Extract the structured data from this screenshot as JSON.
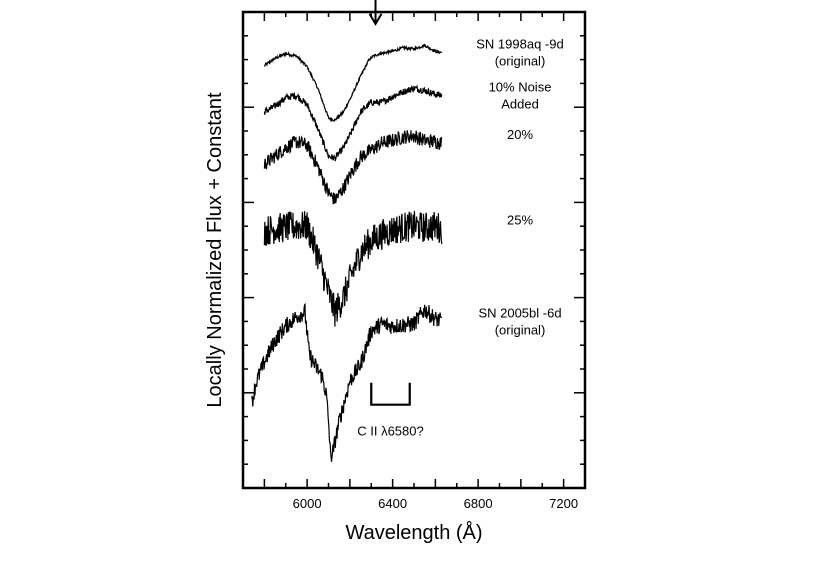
{
  "chart_data": {
    "type": "line",
    "title": "",
    "xlabel": "Wavelength (Å)",
    "ylabel": "Locally Normalized Flux + Constant",
    "xlim": [
      5700,
      7300
    ],
    "ylim": [
      0,
      20
    ],
    "x_ticks": [
      6000,
      6400,
      6800,
      7200
    ],
    "x_tick_labels": [
      "6000",
      "6400",
      "6800",
      "7200"
    ],
    "grid": false,
    "series": [
      {
        "name": "SN 1998aq -9d",
        "label_lines": [
          "SN 1998aq -9d",
          "(original)"
        ],
        "x_range": [
          5800,
          6630
        ],
        "noise": 0.06,
        "points": [
          [
            5800,
            17.75
          ],
          [
            5850,
            18.05
          ],
          [
            5900,
            18.25
          ],
          [
            5950,
            18.15
          ],
          [
            6000,
            17.7
          ],
          [
            6050,
            16.8
          ],
          [
            6100,
            15.55
          ],
          [
            6130,
            15.45
          ],
          [
            6170,
            15.8
          ],
          [
            6210,
            16.5
          ],
          [
            6250,
            17.3
          ],
          [
            6290,
            18.0
          ],
          [
            6310,
            18.15
          ],
          [
            6340,
            18.25
          ],
          [
            6400,
            18.35
          ],
          [
            6450,
            18.5
          ],
          [
            6500,
            18.45
          ],
          [
            6550,
            18.6
          ],
          [
            6600,
            18.35
          ],
          [
            6630,
            18.3
          ]
        ]
      },
      {
        "name": "10% Noise Added",
        "label_lines": [
          "10% Noise",
          "Added"
        ],
        "x_range": [
          5800,
          6630
        ],
        "noise": 0.14,
        "points": [
          [
            5800,
            15.8
          ],
          [
            5850,
            16.05
          ],
          [
            5900,
            16.4
          ],
          [
            5950,
            16.5
          ],
          [
            6000,
            16.1
          ],
          [
            6050,
            15.1
          ],
          [
            6100,
            13.95
          ],
          [
            6130,
            13.85
          ],
          [
            6170,
            14.3
          ],
          [
            6210,
            15.0
          ],
          [
            6250,
            15.8
          ],
          [
            6300,
            16.2
          ],
          [
            6350,
            16.2
          ],
          [
            6400,
            16.45
          ],
          [
            6450,
            16.65
          ],
          [
            6500,
            16.8
          ],
          [
            6550,
            16.7
          ],
          [
            6600,
            16.55
          ],
          [
            6630,
            16.5
          ]
        ]
      },
      {
        "name": "20%",
        "label_lines": [
          "20%"
        ],
        "x_range": [
          5800,
          6630
        ],
        "noise": 0.3,
        "points": [
          [
            5800,
            13.6
          ],
          [
            5850,
            13.95
          ],
          [
            5900,
            14.3
          ],
          [
            5950,
            14.55
          ],
          [
            6000,
            14.4
          ],
          [
            6050,
            13.5
          ],
          [
            6100,
            12.4
          ],
          [
            6130,
            12.1
          ],
          [
            6170,
            12.6
          ],
          [
            6210,
            13.3
          ],
          [
            6250,
            13.9
          ],
          [
            6300,
            14.2
          ],
          [
            6350,
            14.5
          ],
          [
            6400,
            14.6
          ],
          [
            6450,
            14.75
          ],
          [
            6500,
            14.8
          ],
          [
            6550,
            14.6
          ],
          [
            6600,
            14.55
          ],
          [
            6630,
            14.5
          ]
        ]
      },
      {
        "name": "25%",
        "label_lines": [
          "25%"
        ],
        "x_range": [
          5800,
          6630
        ],
        "noise": 0.65,
        "points": [
          [
            5800,
            10.8
          ],
          [
            5850,
            10.9
          ],
          [
            5900,
            10.95
          ],
          [
            5950,
            11.0
          ],
          [
            6000,
            11.0
          ],
          [
            6050,
            9.8
          ],
          [
            6100,
            8.2
          ],
          [
            6130,
            7.4
          ],
          [
            6170,
            8.0
          ],
          [
            6210,
            9.0
          ],
          [
            6250,
            9.9
          ],
          [
            6300,
            10.4
          ],
          [
            6350,
            10.65
          ],
          [
            6400,
            10.85
          ],
          [
            6450,
            10.95
          ],
          [
            6500,
            11.0
          ],
          [
            6550,
            10.95
          ],
          [
            6600,
            11.0
          ],
          [
            6630,
            10.9
          ]
        ]
      },
      {
        "name": "SN 2005bl -6d",
        "label_lines": [
          "SN 2005bl -6d",
          "(original)"
        ],
        "x_range": [
          5740,
          6630
        ],
        "noise": 0.35,
        "points": [
          [
            5740,
            3.5
          ],
          [
            5760,
            4.4
          ],
          [
            5800,
            5.3
          ],
          [
            5850,
            6.2
          ],
          [
            5900,
            6.8
          ],
          [
            5950,
            7.2
          ],
          [
            5990,
            7.4
          ],
          [
            6010,
            5.6
          ],
          [
            6040,
            5.1
          ],
          [
            6070,
            4.7
          ],
          [
            6090,
            3.9
          ],
          [
            6100,
            2.8
          ],
          [
            6110,
            1.3
          ],
          [
            6120,
            1.5
          ],
          [
            6150,
            2.8
          ],
          [
            6200,
            4.5
          ],
          [
            6250,
            5.2
          ],
          [
            6300,
            6.6
          ],
          [
            6350,
            6.9
          ],
          [
            6400,
            6.8
          ],
          [
            6450,
            6.85
          ],
          [
            6500,
            6.9
          ],
          [
            6550,
            7.5
          ],
          [
            6600,
            7.1
          ],
          [
            6630,
            7.0
          ]
        ]
      }
    ],
    "annotations": [
      {
        "text": "C II λ6580?",
        "type": "bracket",
        "x_range": [
          6300,
          6480
        ],
        "y": 3.5,
        "label_y": 2.2
      },
      {
        "text": "",
        "type": "arrow",
        "x": 6320,
        "y_from": 21.0,
        "y_to": 19.5
      }
    ]
  }
}
